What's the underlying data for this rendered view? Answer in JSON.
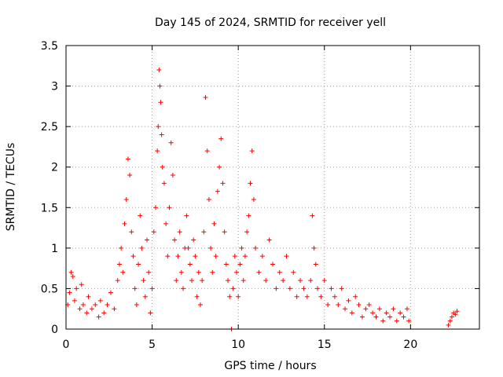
{
  "chart_data": {
    "type": "scatter",
    "title": "Day 145 of 2024, SRMTID for receiver yell",
    "xlabel": "GPS time / hours",
    "ylabel": "SRMTID / TECUs",
    "xlim": [
      0,
      24
    ],
    "ylim": [
      0,
      3.5
    ],
    "x_ticks": [
      0,
      5,
      10,
      15,
      20
    ],
    "y_ticks": [
      0,
      0.5,
      1,
      1.5,
      2,
      2.5,
      3,
      3.5
    ],
    "x_tick_labels": [
      "0",
      "5",
      "10",
      "15",
      "20"
    ],
    "y_tick_labels": [
      "0",
      "0.5",
      "1",
      "1.5",
      "2",
      "2.5",
      "3",
      "3.5"
    ],
    "grid": true,
    "marker": "+",
    "color": "#ff0000",
    "series": [
      {
        "name": "SRMTID",
        "points": [
          [
            0.1,
            0.3
          ],
          [
            0.2,
            0.45
          ],
          [
            0.3,
            0.7
          ],
          [
            0.4,
            0.65
          ],
          [
            0.5,
            0.35
          ],
          [
            0.6,
            0.5
          ],
          [
            0.8,
            0.25
          ],
          [
            0.9,
            0.55
          ],
          [
            1.0,
            0.3
          ],
          [
            1.2,
            0.2
          ],
          [
            1.3,
            0.4
          ],
          [
            1.5,
            0.25
          ],
          [
            1.7,
            0.3
          ],
          [
            1.9,
            0.15
          ],
          [
            2.0,
            0.35
          ],
          [
            2.2,
            0.2
          ],
          [
            2.4,
            0.3
          ],
          [
            2.6,
            0.45
          ],
          [
            2.8,
            0.25
          ],
          [
            3.0,
            0.6
          ],
          [
            3.1,
            0.8
          ],
          [
            3.2,
            1.0
          ],
          [
            3.3,
            0.7
          ],
          [
            3.4,
            1.3
          ],
          [
            3.5,
            1.6
          ],
          [
            3.6,
            2.1
          ],
          [
            3.7,
            1.9
          ],
          [
            3.8,
            1.2
          ],
          [
            3.9,
            0.9
          ],
          [
            4.0,
            0.5
          ],
          [
            4.1,
            0.3
          ],
          [
            4.2,
            0.8
          ],
          [
            4.3,
            1.4
          ],
          [
            4.4,
            1.0
          ],
          [
            4.5,
            0.6
          ],
          [
            4.6,
            0.4
          ],
          [
            4.7,
            1.1
          ],
          [
            4.8,
            0.7
          ],
          [
            4.9,
            0.2
          ],
          [
            5.0,
            0.5
          ],
          [
            5.1,
            1.2
          ],
          [
            5.2,
            1.5
          ],
          [
            5.3,
            2.2
          ],
          [
            5.35,
            2.5
          ],
          [
            5.4,
            3.2
          ],
          [
            5.45,
            3.0
          ],
          [
            5.5,
            2.8
          ],
          [
            5.55,
            2.4
          ],
          [
            5.6,
            2.0
          ],
          [
            5.7,
            1.8
          ],
          [
            5.8,
            1.3
          ],
          [
            5.9,
            0.9
          ],
          [
            6.0,
            1.5
          ],
          [
            6.1,
            2.3
          ],
          [
            6.2,
            1.9
          ],
          [
            6.3,
            1.1
          ],
          [
            6.4,
            0.6
          ],
          [
            6.5,
            0.9
          ],
          [
            6.6,
            1.2
          ],
          [
            6.7,
            0.7
          ],
          [
            6.8,
            0.5
          ],
          [
            6.9,
            1.0
          ],
          [
            7.0,
            1.4
          ],
          [
            7.1,
            1.0
          ],
          [
            7.2,
            0.8
          ],
          [
            7.3,
            0.6
          ],
          [
            7.4,
            1.1
          ],
          [
            7.5,
            0.9
          ],
          [
            7.6,
            0.4
          ],
          [
            7.7,
            0.7
          ],
          [
            7.8,
            0.3
          ],
          [
            7.9,
            0.6
          ],
          [
            8.0,
            1.2
          ],
          [
            8.1,
            2.86
          ],
          [
            8.2,
            2.2
          ],
          [
            8.3,
            1.6
          ],
          [
            8.4,
            1.0
          ],
          [
            8.5,
            0.7
          ],
          [
            8.6,
            1.3
          ],
          [
            8.7,
            0.9
          ],
          [
            8.8,
            1.7
          ],
          [
            8.9,
            2.0
          ],
          [
            9.0,
            2.35
          ],
          [
            9.1,
            1.8
          ],
          [
            9.2,
            1.2
          ],
          [
            9.3,
            0.8
          ],
          [
            9.4,
            0.6
          ],
          [
            9.5,
            0.4
          ],
          [
            9.6,
            0.0
          ],
          [
            9.7,
            0.5
          ],
          [
            9.8,
            0.9
          ],
          [
            9.9,
            0.7
          ],
          [
            10.0,
            0.4
          ],
          [
            10.1,
            0.8
          ],
          [
            10.2,
            1.0
          ],
          [
            10.3,
            0.6
          ],
          [
            10.4,
            0.9
          ],
          [
            10.5,
            1.2
          ],
          [
            10.6,
            1.4
          ],
          [
            10.7,
            1.8
          ],
          [
            10.8,
            2.2
          ],
          [
            10.9,
            1.6
          ],
          [
            11.0,
            1.0
          ],
          [
            11.2,
            0.7
          ],
          [
            11.4,
            0.9
          ],
          [
            11.6,
            0.6
          ],
          [
            11.8,
            1.1
          ],
          [
            12.0,
            0.8
          ],
          [
            12.2,
            0.5
          ],
          [
            12.4,
            0.7
          ],
          [
            12.6,
            0.6
          ],
          [
            12.8,
            0.9
          ],
          [
            13.0,
            0.5
          ],
          [
            13.2,
            0.7
          ],
          [
            13.4,
            0.4
          ],
          [
            13.6,
            0.6
          ],
          [
            13.8,
            0.5
          ],
          [
            14.0,
            0.4
          ],
          [
            14.2,
            0.6
          ],
          [
            14.3,
            1.4
          ],
          [
            14.4,
            1.0
          ],
          [
            14.5,
            0.8
          ],
          [
            14.6,
            0.5
          ],
          [
            14.8,
            0.4
          ],
          [
            15.0,
            0.6
          ],
          [
            15.2,
            0.3
          ],
          [
            15.4,
            0.5
          ],
          [
            15.6,
            0.4
          ],
          [
            15.8,
            0.3
          ],
          [
            16.0,
            0.5
          ],
          [
            16.2,
            0.25
          ],
          [
            16.4,
            0.35
          ],
          [
            16.6,
            0.2
          ],
          [
            16.8,
            0.4
          ],
          [
            17.0,
            0.3
          ],
          [
            17.2,
            0.15
          ],
          [
            17.4,
            0.25
          ],
          [
            17.6,
            0.3
          ],
          [
            17.8,
            0.2
          ],
          [
            18.0,
            0.15
          ],
          [
            18.2,
            0.25
          ],
          [
            18.4,
            0.1
          ],
          [
            18.6,
            0.2
          ],
          [
            18.8,
            0.15
          ],
          [
            19.0,
            0.25
          ],
          [
            19.2,
            0.1
          ],
          [
            19.4,
            0.2
          ],
          [
            19.6,
            0.15
          ],
          [
            19.8,
            0.25
          ],
          [
            19.9,
            0.1
          ],
          [
            22.2,
            0.05
          ],
          [
            22.3,
            0.1
          ],
          [
            22.4,
            0.15
          ],
          [
            22.5,
            0.2
          ],
          [
            22.6,
            0.18
          ],
          [
            22.7,
            0.22
          ]
        ]
      }
    ]
  }
}
